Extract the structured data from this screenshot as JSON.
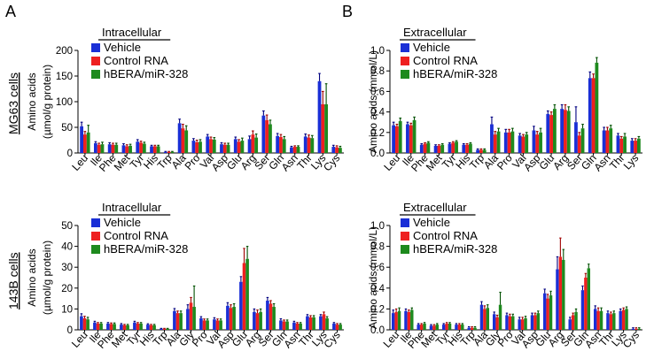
{
  "figure": {
    "panel_labels": [
      "A",
      "B"
    ],
    "row_labels": [
      "MG63 cells",
      "143B cells"
    ],
    "legend": [
      "Vehicle",
      "Control RNA",
      "hBERA/miR-328"
    ],
    "colors": {
      "vehicle": "#1a2fd6",
      "control": "#ee2020",
      "hbera": "#1e8a1e",
      "error": [
        "#000080",
        "#a00000",
        "#005000"
      ]
    }
  },
  "chart_data": [
    {
      "type": "bar",
      "title": "Intracellular",
      "ylabel": "Amino acids (µmol/g protein)",
      "ylim": [
        0,
        200
      ],
      "yticks": [
        "0",
        "50",
        "100",
        "150",
        "200"
      ],
      "categories": [
        "Leu",
        "Ile",
        "Phe",
        "Met",
        "Tyr",
        "His",
        "Trp",
        "Ala",
        "Pro",
        "Val",
        "Asp",
        "Glu",
        "Arg",
        "Ser",
        "Gln",
        "Asn",
        "Thr",
        "Lys",
        "Cys"
      ],
      "series": [
        {
          "name": "Vehicle",
          "values": [
            52,
            19,
            17,
            15,
            22,
            13,
            2,
            58,
            24,
            32,
            17,
            27,
            27,
            73,
            33,
            11,
            32,
            140,
            12
          ],
          "errors": [
            8,
            3,
            3,
            3,
            4,
            2,
            1,
            8,
            4,
            4,
            3,
            4,
            6,
            9,
            5,
            2,
            5,
            15,
            3
          ]
        },
        {
          "name": "Control RNA",
          "values": [
            36,
            16,
            16,
            13,
            20,
            13,
            2,
            48,
            21,
            27,
            16,
            22,
            36,
            64,
            31,
            12,
            30,
            95,
            11
          ],
          "errors": [
            6,
            3,
            3,
            3,
            3,
            2,
            1,
            8,
            4,
            4,
            3,
            4,
            7,
            10,
            5,
            2,
            5,
            25,
            3
          ]
        },
        {
          "name": "hBERA/miR-328",
          "values": [
            40,
            17,
            16,
            14,
            18,
            13,
            2,
            44,
            22,
            26,
            16,
            24,
            30,
            56,
            27,
            12,
            29,
            95,
            10
          ],
          "errors": [
            14,
            4,
            3,
            3,
            3,
            2,
            1,
            9,
            4,
            4,
            3,
            5,
            7,
            8,
            5,
            2,
            5,
            40,
            3
          ]
        }
      ]
    },
    {
      "type": "bar",
      "title": "Extracellular",
      "ylabel": "Amino acids (mmol/L)",
      "ylim": [
        0,
        1.0
      ],
      "yticks": [
        "0.0",
        "0.2",
        "0.4",
        "0.6",
        "0.8",
        "1.0"
      ],
      "categories": [
        "Leu",
        "Ile",
        "Phe",
        "Met",
        "Tyr",
        "His",
        "Trp",
        "Ala",
        "Pro",
        "Val",
        "Asp",
        "Glu",
        "Arg",
        "Ser",
        "Gln",
        "Asn",
        "Thr",
        "Lys"
      ],
      "series": [
        {
          "name": "Vehicle",
          "values": [
            0.27,
            0.28,
            0.08,
            0.07,
            0.09,
            0.08,
            0.03,
            0.28,
            0.2,
            0.17,
            0.22,
            0.38,
            0.43,
            0.3,
            0.73,
            0.22,
            0.17,
            0.12
          ],
          "errors": [
            0.03,
            0.02,
            0.01,
            0.01,
            0.01,
            0.01,
            0.01,
            0.07,
            0.03,
            0.02,
            0.04,
            0.03,
            0.04,
            0.15,
            0.06,
            0.03,
            0.02,
            0.02
          ]
        },
        {
          "name": "Control RNA",
          "values": [
            0.26,
            0.27,
            0.09,
            0.07,
            0.1,
            0.08,
            0.03,
            0.18,
            0.2,
            0.16,
            0.18,
            0.37,
            0.42,
            0.17,
            0.73,
            0.22,
            0.14,
            0.12
          ],
          "errors": [
            0.02,
            0.02,
            0.01,
            0.01,
            0.01,
            0.01,
            0.01,
            0.03,
            0.03,
            0.02,
            0.03,
            0.03,
            0.05,
            0.03,
            0.04,
            0.03,
            0.02,
            0.02
          ]
        },
        {
          "name": "hBERA/miR-328",
          "values": [
            0.31,
            0.32,
            0.1,
            0.08,
            0.11,
            0.09,
            0.03,
            0.21,
            0.21,
            0.18,
            0.2,
            0.43,
            0.41,
            0.24,
            0.88,
            0.24,
            0.16,
            0.14
          ],
          "errors": [
            0.03,
            0.03,
            0.01,
            0.01,
            0.01,
            0.01,
            0.01,
            0.03,
            0.03,
            0.02,
            0.04,
            0.04,
            0.04,
            0.04,
            0.05,
            0.03,
            0.03,
            0.02
          ]
        }
      ]
    },
    {
      "type": "bar",
      "title": "Intracellular",
      "ylabel": "Amino acids (µmol/g protein)",
      "ylim": [
        0,
        50
      ],
      "yticks": [
        "0",
        "10",
        "20",
        "30",
        "40",
        "50"
      ],
      "categories": [
        "Leu",
        "Ile",
        "Phe",
        "Met",
        "Tyr",
        "His",
        "Trp",
        "Ala",
        "Gly",
        "Pro",
        "Val",
        "Asp",
        "Glu",
        "Arg",
        "Ser",
        "Gln",
        "Asn",
        "Thr",
        "Lys",
        "Cys"
      ],
      "series": [
        {
          "name": "Vehicle",
          "values": [
            6.5,
            3.5,
            3,
            2.5,
            3.5,
            2.5,
            0.5,
            9,
            10,
            5.5,
            5,
            11.5,
            23,
            8.5,
            14,
            4.5,
            3.5,
            6.5,
            6.5,
            3
          ],
          "errors": [
            1.2,
            0.6,
            0.5,
            0.5,
            0.6,
            0.4,
            0.2,
            1.2,
            2,
            0.8,
            0.8,
            1.5,
            2.5,
            1.5,
            1.5,
            0.8,
            0.6,
            0.8,
            0.8,
            0.5
          ]
        },
        {
          "name": "Control RNA",
          "values": [
            5.5,
            3,
            2.8,
            2.2,
            3,
            2.2,
            0.5,
            8,
            13,
            4.5,
            4.5,
            10.5,
            32,
            8,
            12.5,
            4,
            3,
            6,
            7.5,
            2.5
          ],
          "errors": [
            1,
            0.5,
            0.5,
            0.4,
            0.5,
            0.4,
            0.2,
            1,
            2.5,
            0.7,
            0.7,
            1.5,
            7,
            1.5,
            1.5,
            0.7,
            0.5,
            0.8,
            1,
            0.5
          ]
        },
        {
          "name": "hBERA/miR-328",
          "values": [
            5,
            3,
            2.8,
            2.2,
            3,
            2.2,
            0.5,
            8,
            11,
            4.5,
            4.5,
            11,
            34,
            8.5,
            11,
            4,
            3,
            6,
            5.5,
            2.5
          ],
          "errors": [
            1,
            0.5,
            0.5,
            0.4,
            0.5,
            0.4,
            0.2,
            1,
            10,
            0.7,
            0.7,
            1.5,
            6,
            1.5,
            1.5,
            0.7,
            0.5,
            0.8,
            0.8,
            0.5
          ]
        }
      ]
    },
    {
      "type": "bar",
      "title": "Extracellular",
      "ylabel": "Amino acids (mmol/L)",
      "ylim": [
        0,
        1.0
      ],
      "yticks": [
        "0.0",
        "0.2",
        "0.4",
        "0.6",
        "0.8",
        "1.0"
      ],
      "categories": [
        "Leu",
        "Ile",
        "Phe",
        "Met",
        "Tyr",
        "His",
        "Trp",
        "Ala",
        "Gly",
        "Pro",
        "Val",
        "Asp",
        "Glu",
        "Arg",
        "Ser",
        "Gln",
        "Asn",
        "Thr",
        "Lys",
        "Cys"
      ],
      "series": [
        {
          "name": "Vehicle",
          "values": [
            0.16,
            0.18,
            0.05,
            0.04,
            0.05,
            0.05,
            0.02,
            0.24,
            0.15,
            0.14,
            0.1,
            0.14,
            0.35,
            0.58,
            0.1,
            0.38,
            0.2,
            0.16,
            0.18,
            0.01
          ],
          "errors": [
            0.03,
            0.02,
            0.01,
            0.01,
            0.01,
            0.01,
            0.01,
            0.03,
            0.02,
            0.02,
            0.02,
            0.02,
            0.04,
            0.12,
            0.02,
            0.04,
            0.03,
            0.02,
            0.02,
            0.01
          ]
        },
        {
          "name": "Control RNA",
          "values": [
            0.17,
            0.17,
            0.05,
            0.04,
            0.06,
            0.05,
            0.02,
            0.2,
            0.12,
            0.13,
            0.1,
            0.14,
            0.3,
            0.7,
            0.14,
            0.5,
            0.18,
            0.15,
            0.19,
            0.01
          ],
          "errors": [
            0.03,
            0.02,
            0.01,
            0.01,
            0.01,
            0.01,
            0.01,
            0.03,
            0.02,
            0.02,
            0.02,
            0.02,
            0.04,
            0.18,
            0.02,
            0.04,
            0.03,
            0.02,
            0.02,
            0.01
          ]
        },
        {
          "name": "hBERA/miR-328",
          "values": [
            0.18,
            0.19,
            0.06,
            0.05,
            0.06,
            0.05,
            0.02,
            0.21,
            0.24,
            0.13,
            0.11,
            0.16,
            0.33,
            0.67,
            0.17,
            0.59,
            0.18,
            0.16,
            0.2,
            0.01
          ],
          "errors": [
            0.03,
            0.02,
            0.01,
            0.01,
            0.01,
            0.01,
            0.01,
            0.03,
            0.12,
            0.02,
            0.02,
            0.02,
            0.04,
            0.1,
            0.03,
            0.04,
            0.03,
            0.02,
            0.02,
            0.01
          ]
        }
      ]
    }
  ]
}
